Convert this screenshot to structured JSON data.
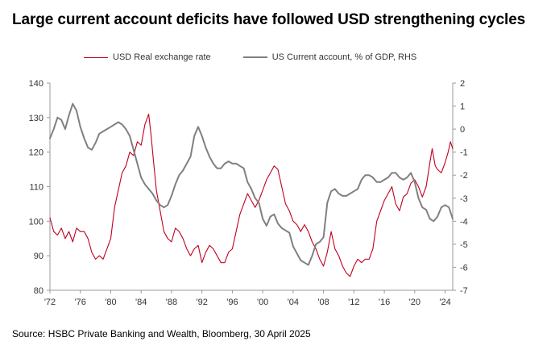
{
  "title": "Large current account deficits have followed USD strengthening cycles",
  "source": "Source: HSBC Private Banking and Wealth, Bloomberg, 30 April 2025",
  "colors": {
    "real_exchange_rate": "#c00020",
    "current_account": "#808080",
    "axis": "#999999"
  },
  "chart_data": {
    "type": "line",
    "legend_position": "top",
    "grid": false,
    "x_range": [
      1972,
      2025
    ],
    "x_ticks": [
      {
        "value": 1972,
        "label": "'72"
      },
      {
        "value": 1976,
        "label": "'76"
      },
      {
        "value": 1980,
        "label": "'80"
      },
      {
        "value": 1984,
        "label": "'84"
      },
      {
        "value": 1988,
        "label": "'88"
      },
      {
        "value": 1992,
        "label": "'92"
      },
      {
        "value": 1996,
        "label": "'96"
      },
      {
        "value": 2000,
        "label": "'00"
      },
      {
        "value": 2004,
        "label": "'04"
      },
      {
        "value": 2008,
        "label": "'08"
      },
      {
        "value": 2012,
        "label": "'12"
      },
      {
        "value": 2016,
        "label": "'16"
      },
      {
        "value": 2020,
        "label": "'20"
      },
      {
        "value": 2024,
        "label": "'24"
      }
    ],
    "y_left": {
      "range": [
        80,
        140
      ],
      "ticks": [
        80,
        90,
        100,
        110,
        120,
        130,
        140
      ]
    },
    "y_right": {
      "range": [
        -7,
        2
      ],
      "ticks": [
        -7,
        -6,
        -5,
        -4,
        -3,
        -2,
        -1,
        0,
        1,
        2
      ]
    },
    "series": [
      {
        "name": "USD Real exchange rate",
        "axis": "left",
        "color": "#c00020",
        "points": [
          [
            1972.0,
            101
          ],
          [
            1972.5,
            97
          ],
          [
            1973.0,
            96
          ],
          [
            1973.5,
            98
          ],
          [
            1974.0,
            95
          ],
          [
            1974.5,
            97
          ],
          [
            1975.0,
            94
          ],
          [
            1975.5,
            98
          ],
          [
            1976.0,
            97
          ],
          [
            1976.5,
            97
          ],
          [
            1977.0,
            95
          ],
          [
            1977.5,
            91
          ],
          [
            1978.0,
            89
          ],
          [
            1978.5,
            90
          ],
          [
            1979.0,
            89
          ],
          [
            1979.5,
            92
          ],
          [
            1980.0,
            95
          ],
          [
            1980.5,
            104
          ],
          [
            1981.0,
            109
          ],
          [
            1981.5,
            114
          ],
          [
            1982.0,
            116
          ],
          [
            1982.5,
            120
          ],
          [
            1983.0,
            119
          ],
          [
            1983.5,
            123
          ],
          [
            1984.0,
            122
          ],
          [
            1984.5,
            128
          ],
          [
            1985.0,
            131
          ],
          [
            1985.3,
            125
          ],
          [
            1985.6,
            118
          ],
          [
            1986.0,
            109
          ],
          [
            1986.5,
            103
          ],
          [
            1987.0,
            97
          ],
          [
            1987.5,
            95
          ],
          [
            1988.0,
            94
          ],
          [
            1988.5,
            98
          ],
          [
            1989.0,
            97
          ],
          [
            1989.5,
            95
          ],
          [
            1990.0,
            92
          ],
          [
            1990.5,
            90
          ],
          [
            1991.0,
            92
          ],
          [
            1991.5,
            93
          ],
          [
            1992.0,
            88
          ],
          [
            1992.5,
            91
          ],
          [
            1993.0,
            93
          ],
          [
            1993.5,
            92
          ],
          [
            1994.0,
            90
          ],
          [
            1994.5,
            88
          ],
          [
            1995.0,
            88
          ],
          [
            1995.5,
            91
          ],
          [
            1996.0,
            92
          ],
          [
            1996.5,
            97
          ],
          [
            1997.0,
            102
          ],
          [
            1997.5,
            105
          ],
          [
            1998.0,
            108
          ],
          [
            1998.5,
            106
          ],
          [
            1999.0,
            104
          ],
          [
            1999.5,
            106
          ],
          [
            2000.0,
            109
          ],
          [
            2000.5,
            112
          ],
          [
            2001.0,
            114
          ],
          [
            2001.5,
            116
          ],
          [
            2002.0,
            115
          ],
          [
            2002.5,
            110
          ],
          [
            2003.0,
            105
          ],
          [
            2003.5,
            103
          ],
          [
            2004.0,
            100
          ],
          [
            2004.5,
            99
          ],
          [
            2005.0,
            97
          ],
          [
            2005.5,
            99
          ],
          [
            2006.0,
            97
          ],
          [
            2006.5,
            94
          ],
          [
            2007.0,
            92
          ],
          [
            2007.5,
            89
          ],
          [
            2008.0,
            87
          ],
          [
            2008.5,
            91
          ],
          [
            2009.0,
            97
          ],
          [
            2009.5,
            92
          ],
          [
            2010.0,
            90
          ],
          [
            2010.5,
            87
          ],
          [
            2011.0,
            85
          ],
          [
            2011.5,
            84
          ],
          [
            2012.0,
            87
          ],
          [
            2012.5,
            89
          ],
          [
            2013.0,
            88
          ],
          [
            2013.5,
            89
          ],
          [
            2014.0,
            89
          ],
          [
            2014.5,
            92
          ],
          [
            2015.0,
            100
          ],
          [
            2015.5,
            103
          ],
          [
            2016.0,
            106
          ],
          [
            2016.5,
            108
          ],
          [
            2017.0,
            110
          ],
          [
            2017.5,
            105
          ],
          [
            2018.0,
            103
          ],
          [
            2018.5,
            107
          ],
          [
            2019.0,
            108
          ],
          [
            2019.5,
            111
          ],
          [
            2020.0,
            112
          ],
          [
            2020.5,
            110
          ],
          [
            2021.0,
            107
          ],
          [
            2021.5,
            110
          ],
          [
            2022.0,
            117
          ],
          [
            2022.3,
            121
          ],
          [
            2022.7,
            116
          ],
          [
            2023.0,
            115
          ],
          [
            2023.5,
            114
          ],
          [
            2024.0,
            117
          ],
          [
            2024.4,
            120
          ],
          [
            2024.7,
            123
          ],
          [
            2025.0,
            121
          ]
        ]
      },
      {
        "name": "US Current account, % of GDP, RHS",
        "axis": "right",
        "color": "#808080",
        "points": [
          [
            1972.0,
            -0.4
          ],
          [
            1972.5,
            0.0
          ],
          [
            1973.0,
            0.5
          ],
          [
            1973.5,
            0.4
          ],
          [
            1974.0,
            0.0
          ],
          [
            1974.5,
            0.6
          ],
          [
            1975.0,
            1.1
          ],
          [
            1975.5,
            0.8
          ],
          [
            1976.0,
            0.1
          ],
          [
            1976.5,
            -0.4
          ],
          [
            1977.0,
            -0.8
          ],
          [
            1977.5,
            -0.9
          ],
          [
            1978.0,
            -0.6
          ],
          [
            1978.5,
            -0.2
          ],
          [
            1979.0,
            -0.1
          ],
          [
            1979.5,
            0.0
          ],
          [
            1980.0,
            0.1
          ],
          [
            1980.5,
            0.2
          ],
          [
            1981.0,
            0.3
          ],
          [
            1981.5,
            0.2
          ],
          [
            1982.0,
            0.0
          ],
          [
            1982.5,
            -0.3
          ],
          [
            1983.0,
            -0.9
          ],
          [
            1983.5,
            -1.5
          ],
          [
            1984.0,
            -2.1
          ],
          [
            1984.5,
            -2.4
          ],
          [
            1985.0,
            -2.6
          ],
          [
            1985.5,
            -2.8
          ],
          [
            1986.0,
            -3.1
          ],
          [
            1986.5,
            -3.3
          ],
          [
            1987.0,
            -3.4
          ],
          [
            1987.5,
            -3.3
          ],
          [
            1988.0,
            -2.9
          ],
          [
            1988.5,
            -2.4
          ],
          [
            1989.0,
            -2.0
          ],
          [
            1989.5,
            -1.8
          ],
          [
            1990.0,
            -1.5
          ],
          [
            1990.5,
            -1.2
          ],
          [
            1991.0,
            -0.3
          ],
          [
            1991.5,
            0.1
          ],
          [
            1992.0,
            -0.3
          ],
          [
            1992.5,
            -0.8
          ],
          [
            1993.0,
            -1.2
          ],
          [
            1993.5,
            -1.5
          ],
          [
            1994.0,
            -1.7
          ],
          [
            1994.5,
            -1.7
          ],
          [
            1995.0,
            -1.5
          ],
          [
            1995.5,
            -1.4
          ],
          [
            1996.0,
            -1.5
          ],
          [
            1996.5,
            -1.5
          ],
          [
            1997.0,
            -1.6
          ],
          [
            1997.5,
            -1.7
          ],
          [
            1998.0,
            -2.3
          ],
          [
            1998.5,
            -2.6
          ],
          [
            1999.0,
            -3.0
          ],
          [
            1999.5,
            -3.2
          ],
          [
            2000.0,
            -3.9
          ],
          [
            2000.5,
            -4.2
          ],
          [
            2001.0,
            -3.8
          ],
          [
            2001.5,
            -3.7
          ],
          [
            2002.0,
            -4.1
          ],
          [
            2002.5,
            -4.3
          ],
          [
            2003.0,
            -4.4
          ],
          [
            2003.5,
            -4.5
          ],
          [
            2004.0,
            -5.1
          ],
          [
            2004.5,
            -5.4
          ],
          [
            2005.0,
            -5.7
          ],
          [
            2005.5,
            -5.8
          ],
          [
            2006.0,
            -5.9
          ],
          [
            2006.5,
            -5.5
          ],
          [
            2007.0,
            -5.0
          ],
          [
            2007.5,
            -4.9
          ],
          [
            2008.0,
            -4.7
          ],
          [
            2008.5,
            -3.2
          ],
          [
            2009.0,
            -2.7
          ],
          [
            2009.5,
            -2.6
          ],
          [
            2010.0,
            -2.8
          ],
          [
            2010.5,
            -2.9
          ],
          [
            2011.0,
            -2.9
          ],
          [
            2011.5,
            -2.8
          ],
          [
            2012.0,
            -2.7
          ],
          [
            2012.5,
            -2.6
          ],
          [
            2013.0,
            -2.2
          ],
          [
            2013.5,
            -2.0
          ],
          [
            2014.0,
            -2.0
          ],
          [
            2014.5,
            -2.1
          ],
          [
            2015.0,
            -2.3
          ],
          [
            2015.5,
            -2.3
          ],
          [
            2016.0,
            -2.2
          ],
          [
            2016.5,
            -2.1
          ],
          [
            2017.0,
            -1.9
          ],
          [
            2017.5,
            -1.9
          ],
          [
            2018.0,
            -2.1
          ],
          [
            2018.5,
            -2.2
          ],
          [
            2019.0,
            -2.1
          ],
          [
            2019.5,
            -1.9
          ],
          [
            2020.0,
            -2.3
          ],
          [
            2020.5,
            -3.0
          ],
          [
            2021.0,
            -3.4
          ],
          [
            2021.5,
            -3.5
          ],
          [
            2022.0,
            -3.9
          ],
          [
            2022.5,
            -4.0
          ],
          [
            2023.0,
            -3.8
          ],
          [
            2023.5,
            -3.4
          ],
          [
            2024.0,
            -3.3
          ],
          [
            2024.5,
            -3.4
          ],
          [
            2025.0,
            -3.9
          ]
        ]
      }
    ]
  }
}
